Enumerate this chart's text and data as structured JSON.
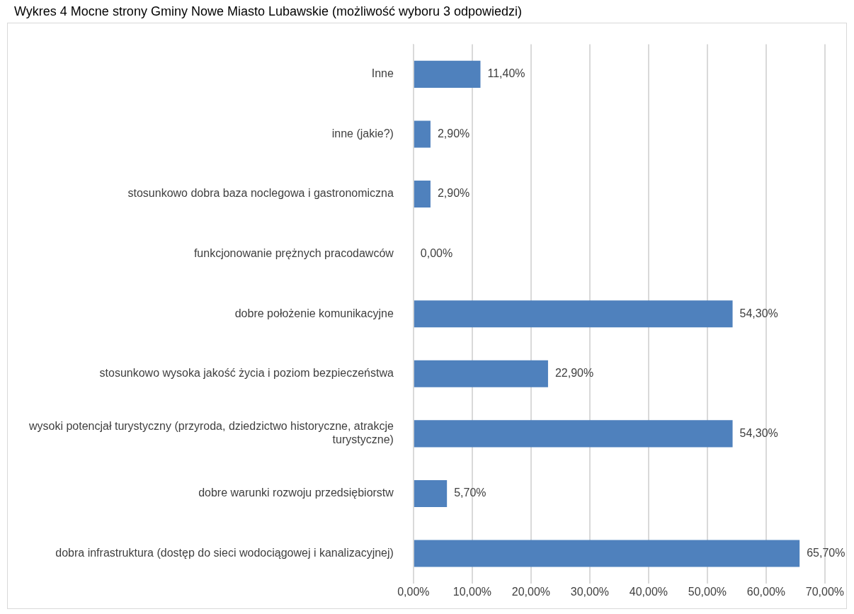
{
  "chart_data": {
    "type": "bar",
    "orientation": "horizontal",
    "title": "Wykres 4 Mocne strony Gminy Nowe Miasto Lubawskie (możliwość wyboru 3 odpowiedzi)",
    "categories": [
      "Inne",
      "inne (jakie?)",
      "stosunkowo dobra baza noclegowa i gastronomiczna",
      "funkcjonowanie prężnych pracodawców",
      "dobre położenie komunikacyjne",
      "stosunkowo wysoka jakość życia i poziom bezpieczeństwa",
      "wysoki potencjał turystyczny (przyroda, dziedzictwo historyczne, atrakcje turystyczne)",
      "dobre warunki rozwoju przedsiębiorstw",
      "dobra infrastruktura (dostęp do sieci wodociągowej i kanalizacyjnej)"
    ],
    "values": [
      11.4,
      2.9,
      2.9,
      0,
      54.3,
      22.9,
      54.3,
      5.7,
      65.7
    ],
    "value_labels": [
      "11,40%",
      "2,90%",
      "2,90%",
      "0,00%",
      "54,30%",
      "22,90%",
      "54,30%",
      "5,70%",
      "65,70%"
    ],
    "color": "#4f81bd",
    "xlim": [
      0,
      70
    ],
    "xticks": [
      {
        "value": 0,
        "label": "0,00%"
      },
      {
        "value": 10,
        "label": "10,00%"
      },
      {
        "value": 20,
        "label": "20,00%"
      },
      {
        "value": 30,
        "label": "30,00%"
      },
      {
        "value": 40,
        "label": "40,00%"
      },
      {
        "value": 50,
        "label": "50,00%"
      },
      {
        "value": 60,
        "label": "60,00%"
      },
      {
        "value": 70,
        "label": "70,00%"
      }
    ],
    "grid": "x",
    "legend": false
  }
}
